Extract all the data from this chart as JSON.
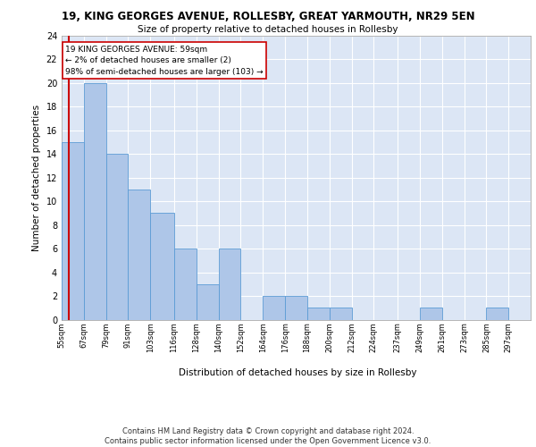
{
  "title1": "19, KING GEORGES AVENUE, ROLLESBY, GREAT YARMOUTH, NR29 5EN",
  "title2": "Size of property relative to detached houses in Rollesby",
  "xlabel": "Distribution of detached houses by size in Rollesby",
  "ylabel": "Number of detached properties",
  "bin_labels": [
    "55sqm",
    "67sqm",
    "79sqm",
    "91sqm",
    "103sqm",
    "116sqm",
    "128sqm",
    "140sqm",
    "152sqm",
    "164sqm",
    "176sqm",
    "188sqm",
    "200sqm",
    "212sqm",
    "224sqm",
    "237sqm",
    "249sqm",
    "261sqm",
    "273sqm",
    "285sqm",
    "297sqm"
  ],
  "bin_edges": [
    55,
    67,
    79,
    91,
    103,
    116,
    128,
    140,
    152,
    164,
    176,
    188,
    200,
    212,
    224,
    237,
    249,
    261,
    273,
    285,
    297,
    309
  ],
  "counts": [
    15,
    20,
    14,
    11,
    9,
    6,
    3,
    6,
    0,
    2,
    2,
    1,
    1,
    0,
    0,
    0,
    1,
    0,
    0,
    1,
    0
  ],
  "subject_value": 59,
  "subject_label": "19 KING GEORGES AVENUE: 59sqm\n← 2% of detached houses are smaller (2)\n98% of semi-detached houses are larger (103) →",
  "bar_color": "#aec6e8",
  "bar_edge_color": "#5b9bd5",
  "subject_line_color": "#cc0000",
  "annotation_box_edge": "#cc0000",
  "background_color": "#dce6f5",
  "grid_color": "#ffffff",
  "footer": "Contains HM Land Registry data © Crown copyright and database right 2024.\nContains public sector information licensed under the Open Government Licence v3.0.",
  "ylim": [
    0,
    24
  ],
  "yticks": [
    0,
    2,
    4,
    6,
    8,
    10,
    12,
    14,
    16,
    18,
    20,
    22,
    24
  ]
}
